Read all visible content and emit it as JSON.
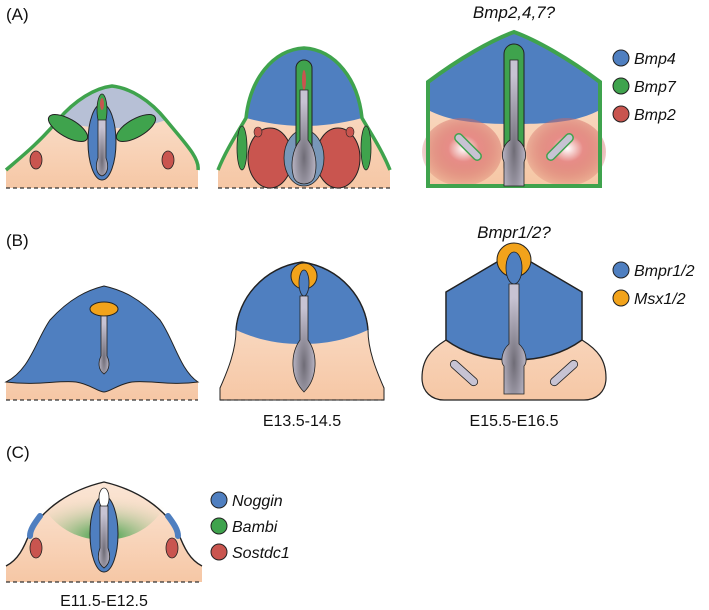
{
  "panels": [
    {
      "label": "(A)",
      "note": "Bmp2,4,7?",
      "legend": [
        {
          "name": "Bmp4",
          "color": "#4f7fc0"
        },
        {
          "name": "Bmp7",
          "color": "#3fa34d"
        },
        {
          "name": "Bmp2",
          "color": "#c9554f"
        }
      ]
    },
    {
      "label": "(B)",
      "note": "Bmpr1/2?",
      "legend": [
        {
          "name": "Bmpr1/2",
          "color": "#4f7fc0"
        },
        {
          "name": "Msx1/2",
          "color": "#f2a31b"
        }
      ]
    },
    {
      "label": "(C)",
      "legend": [
        {
          "name": "Noggin",
          "color": "#4f7fc0"
        },
        {
          "name": "Bambi",
          "color": "#3fa34d"
        },
        {
          "name": "Sostdc1",
          "color": "#c9554f"
        }
      ]
    }
  ],
  "stages": [
    "E13.5-14.5",
    "E15.5-E16.5",
    "E11.5-E12.5"
  ]
}
